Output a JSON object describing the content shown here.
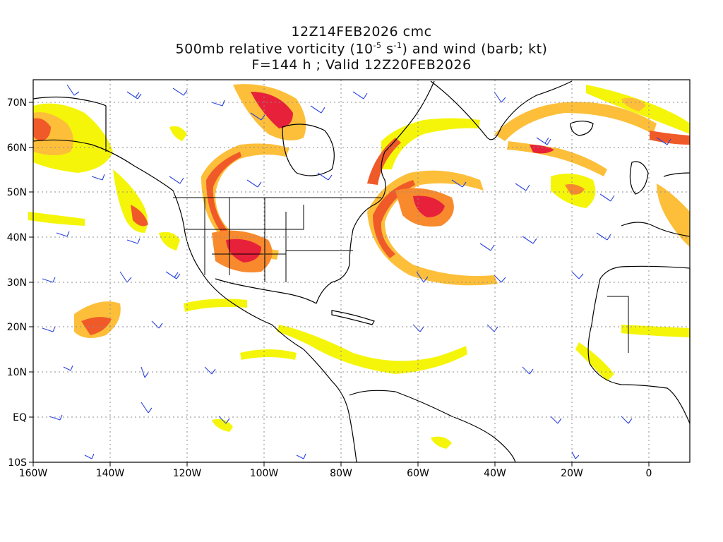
{
  "title": {
    "line1": "12Z14FEB2026 cmc",
    "line2_pre": "500mb relative vorticity (10",
    "line2_exp1": "-5",
    "line2_mid": " s",
    "line2_exp2": "-1",
    "line2_post": ") and wind (barb; kt)",
    "line3": "F=144 h ; Valid 12Z20FEB2026"
  },
  "axes": {
    "lat_labels": [
      "70N",
      "60N",
      "50N",
      "40N",
      "30N",
      "20N",
      "10N",
      "EQ",
      "10S"
    ],
    "lon_labels": [
      "160W",
      "140W",
      "120W",
      "100W",
      "80W",
      "60W",
      "40W",
      "20W",
      "0"
    ]
  },
  "colors": {
    "light": "#f5f50a",
    "yellow": "#fce800",
    "orange1": "#fdbf3a",
    "orange2": "#f88a2d",
    "red1": "#f05a28",
    "red2": "#e8213a",
    "barb": "#2a42e0",
    "coast": "#000000",
    "grid": "#8c8c8c"
  },
  "icons": [
    "wind-barb-icon"
  ]
}
